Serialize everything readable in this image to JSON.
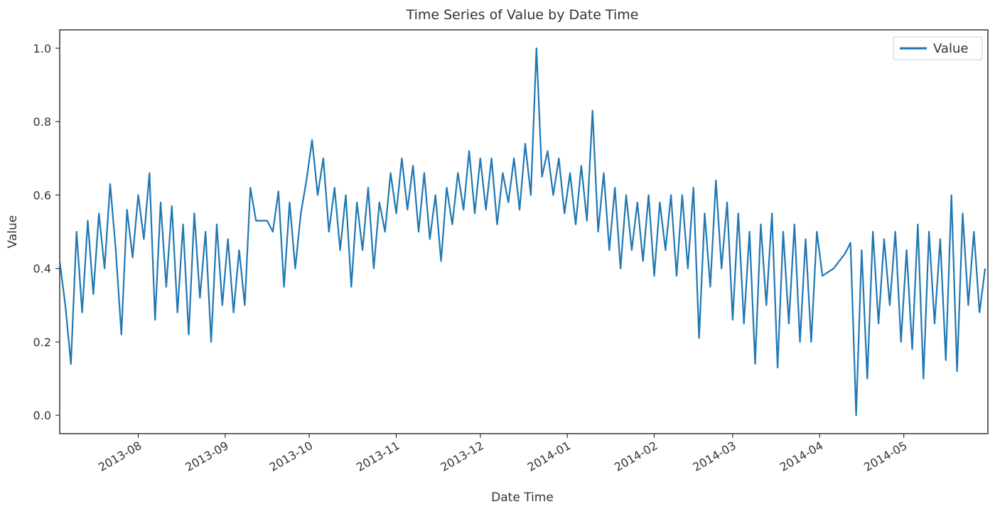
{
  "chart_data": {
    "type": "line",
    "title": "Time Series of Value by Date Time",
    "xlabel": "Date Time",
    "ylabel": "Value",
    "xlim": [
      "2013-07-04",
      "2014-05-31"
    ],
    "ylim": [
      -0.05,
      1.05
    ],
    "x_ticks": [
      "2013-08",
      "2013-09",
      "2013-10",
      "2013-11",
      "2013-12",
      "2014-01",
      "2014-02",
      "2014-03",
      "2014-04",
      "2014-05"
    ],
    "y_ticks": [
      "0.0",
      "0.2",
      "0.4",
      "0.6",
      "0.8",
      "1.0"
    ],
    "grid": false,
    "legend_position": "top-right",
    "colors": {
      "series": "#1f77b4",
      "axes": "#333333"
    },
    "series": [
      {
        "name": "Value",
        "points": [
          [
            "2013-07-04",
            0.42
          ],
          [
            "2013-07-06",
            0.3
          ],
          [
            "2013-07-08",
            0.14
          ],
          [
            "2013-07-10",
            0.5
          ],
          [
            "2013-07-12",
            0.28
          ],
          [
            "2013-07-14",
            0.53
          ],
          [
            "2013-07-16",
            0.33
          ],
          [
            "2013-07-18",
            0.55
          ],
          [
            "2013-07-20",
            0.4
          ],
          [
            "2013-07-22",
            0.63
          ],
          [
            "2013-07-24",
            0.45
          ],
          [
            "2013-07-26",
            0.22
          ],
          [
            "2013-07-28",
            0.56
          ],
          [
            "2013-07-30",
            0.43
          ],
          [
            "2013-08-01",
            0.6
          ],
          [
            "2013-08-03",
            0.48
          ],
          [
            "2013-08-05",
            0.66
          ],
          [
            "2013-08-07",
            0.26
          ],
          [
            "2013-08-09",
            0.58
          ],
          [
            "2013-08-11",
            0.35
          ],
          [
            "2013-08-13",
            0.57
          ],
          [
            "2013-08-15",
            0.28
          ],
          [
            "2013-08-17",
            0.52
          ],
          [
            "2013-08-19",
            0.22
          ],
          [
            "2013-08-21",
            0.55
          ],
          [
            "2013-08-23",
            0.32
          ],
          [
            "2013-08-25",
            0.5
          ],
          [
            "2013-08-27",
            0.2
          ],
          [
            "2013-08-29",
            0.52
          ],
          [
            "2013-08-31",
            0.3
          ],
          [
            "2013-09-02",
            0.48
          ],
          [
            "2013-09-04",
            0.28
          ],
          [
            "2013-09-06",
            0.45
          ],
          [
            "2013-09-08",
            0.3
          ],
          [
            "2013-09-10",
            0.62
          ],
          [
            "2013-09-12",
            0.53
          ],
          [
            "2013-09-16",
            0.53
          ],
          [
            "2013-09-18",
            0.5
          ],
          [
            "2013-09-20",
            0.61
          ],
          [
            "2013-09-22",
            0.35
          ],
          [
            "2013-09-24",
            0.58
          ],
          [
            "2013-09-26",
            0.4
          ],
          [
            "2013-09-28",
            0.55
          ],
          [
            "2013-09-30",
            0.64
          ],
          [
            "2013-10-02",
            0.75
          ],
          [
            "2013-10-04",
            0.6
          ],
          [
            "2013-10-06",
            0.7
          ],
          [
            "2013-10-08",
            0.5
          ],
          [
            "2013-10-10",
            0.62
          ],
          [
            "2013-10-12",
            0.45
          ],
          [
            "2013-10-14",
            0.6
          ],
          [
            "2013-10-16",
            0.35
          ],
          [
            "2013-10-18",
            0.58
          ],
          [
            "2013-10-20",
            0.45
          ],
          [
            "2013-10-22",
            0.62
          ],
          [
            "2013-10-24",
            0.4
          ],
          [
            "2013-10-26",
            0.58
          ],
          [
            "2013-10-28",
            0.5
          ],
          [
            "2013-10-30",
            0.66
          ],
          [
            "2013-11-01",
            0.55
          ],
          [
            "2013-11-03",
            0.7
          ],
          [
            "2013-11-05",
            0.56
          ],
          [
            "2013-11-07",
            0.68
          ],
          [
            "2013-11-09",
            0.5
          ],
          [
            "2013-11-11",
            0.66
          ],
          [
            "2013-11-13",
            0.48
          ],
          [
            "2013-11-15",
            0.6
          ],
          [
            "2013-11-17",
            0.42
          ],
          [
            "2013-11-19",
            0.62
          ],
          [
            "2013-11-21",
            0.52
          ],
          [
            "2013-11-23",
            0.66
          ],
          [
            "2013-11-25",
            0.56
          ],
          [
            "2013-11-27",
            0.72
          ],
          [
            "2013-11-29",
            0.55
          ],
          [
            "2013-12-01",
            0.7
          ],
          [
            "2013-12-03",
            0.56
          ],
          [
            "2013-12-05",
            0.7
          ],
          [
            "2013-12-07",
            0.52
          ],
          [
            "2013-12-09",
            0.66
          ],
          [
            "2013-12-11",
            0.58
          ],
          [
            "2013-12-13",
            0.7
          ],
          [
            "2013-12-15",
            0.56
          ],
          [
            "2013-12-17",
            0.74
          ],
          [
            "2013-12-19",
            0.6
          ],
          [
            "2013-12-21",
            1.0
          ],
          [
            "2013-12-23",
            0.65
          ],
          [
            "2013-12-25",
            0.72
          ],
          [
            "2013-12-27",
            0.6
          ],
          [
            "2013-12-29",
            0.7
          ],
          [
            "2013-12-31",
            0.55
          ],
          [
            "2014-01-02",
            0.66
          ],
          [
            "2014-01-04",
            0.52
          ],
          [
            "2014-01-06",
            0.68
          ],
          [
            "2014-01-08",
            0.53
          ],
          [
            "2014-01-10",
            0.83
          ],
          [
            "2014-01-12",
            0.5
          ],
          [
            "2014-01-14",
            0.66
          ],
          [
            "2014-01-16",
            0.45
          ],
          [
            "2014-01-18",
            0.62
          ],
          [
            "2014-01-20",
            0.4
          ],
          [
            "2014-01-22",
            0.6
          ],
          [
            "2014-01-24",
            0.45
          ],
          [
            "2014-01-26",
            0.58
          ],
          [
            "2014-01-28",
            0.42
          ],
          [
            "2014-01-30",
            0.6
          ],
          [
            "2014-02-01",
            0.38
          ],
          [
            "2014-02-03",
            0.58
          ],
          [
            "2014-02-05",
            0.45
          ],
          [
            "2014-02-07",
            0.6
          ],
          [
            "2014-02-09",
            0.38
          ],
          [
            "2014-02-11",
            0.6
          ],
          [
            "2014-02-13",
            0.4
          ],
          [
            "2014-02-15",
            0.62
          ],
          [
            "2014-02-17",
            0.21
          ],
          [
            "2014-02-19",
            0.55
          ],
          [
            "2014-02-21",
            0.35
          ],
          [
            "2014-02-23",
            0.64
          ],
          [
            "2014-02-25",
            0.4
          ],
          [
            "2014-02-27",
            0.58
          ],
          [
            "2014-03-01",
            0.26
          ],
          [
            "2014-03-03",
            0.55
          ],
          [
            "2014-03-05",
            0.25
          ],
          [
            "2014-03-07",
            0.5
          ],
          [
            "2014-03-09",
            0.14
          ],
          [
            "2014-03-11",
            0.52
          ],
          [
            "2014-03-13",
            0.3
          ],
          [
            "2014-03-15",
            0.55
          ],
          [
            "2014-03-17",
            0.13
          ],
          [
            "2014-03-19",
            0.5
          ],
          [
            "2014-03-21",
            0.25
          ],
          [
            "2014-03-23",
            0.52
          ],
          [
            "2014-03-25",
            0.2
          ],
          [
            "2014-03-27",
            0.48
          ],
          [
            "2014-03-29",
            0.2
          ],
          [
            "2014-03-31",
            0.5
          ],
          [
            "2014-04-02",
            0.38
          ],
          [
            "2014-04-06",
            0.4
          ],
          [
            "2014-04-10",
            0.44
          ],
          [
            "2014-04-12",
            0.47
          ],
          [
            "2014-04-14",
            0.0
          ],
          [
            "2014-04-16",
            0.45
          ],
          [
            "2014-04-18",
            0.1
          ],
          [
            "2014-04-20",
            0.5
          ],
          [
            "2014-04-22",
            0.25
          ],
          [
            "2014-04-24",
            0.48
          ],
          [
            "2014-04-26",
            0.3
          ],
          [
            "2014-04-28",
            0.5
          ],
          [
            "2014-04-30",
            0.2
          ],
          [
            "2014-05-02",
            0.45
          ],
          [
            "2014-05-04",
            0.18
          ],
          [
            "2014-05-06",
            0.52
          ],
          [
            "2014-05-08",
            0.1
          ],
          [
            "2014-05-10",
            0.5
          ],
          [
            "2014-05-12",
            0.25
          ],
          [
            "2014-05-14",
            0.48
          ],
          [
            "2014-05-16",
            0.15
          ],
          [
            "2014-05-18",
            0.6
          ],
          [
            "2014-05-20",
            0.12
          ],
          [
            "2014-05-22",
            0.55
          ],
          [
            "2014-05-24",
            0.3
          ],
          [
            "2014-05-26",
            0.5
          ],
          [
            "2014-05-28",
            0.28
          ],
          [
            "2014-05-30",
            0.4
          ]
        ]
      }
    ]
  }
}
